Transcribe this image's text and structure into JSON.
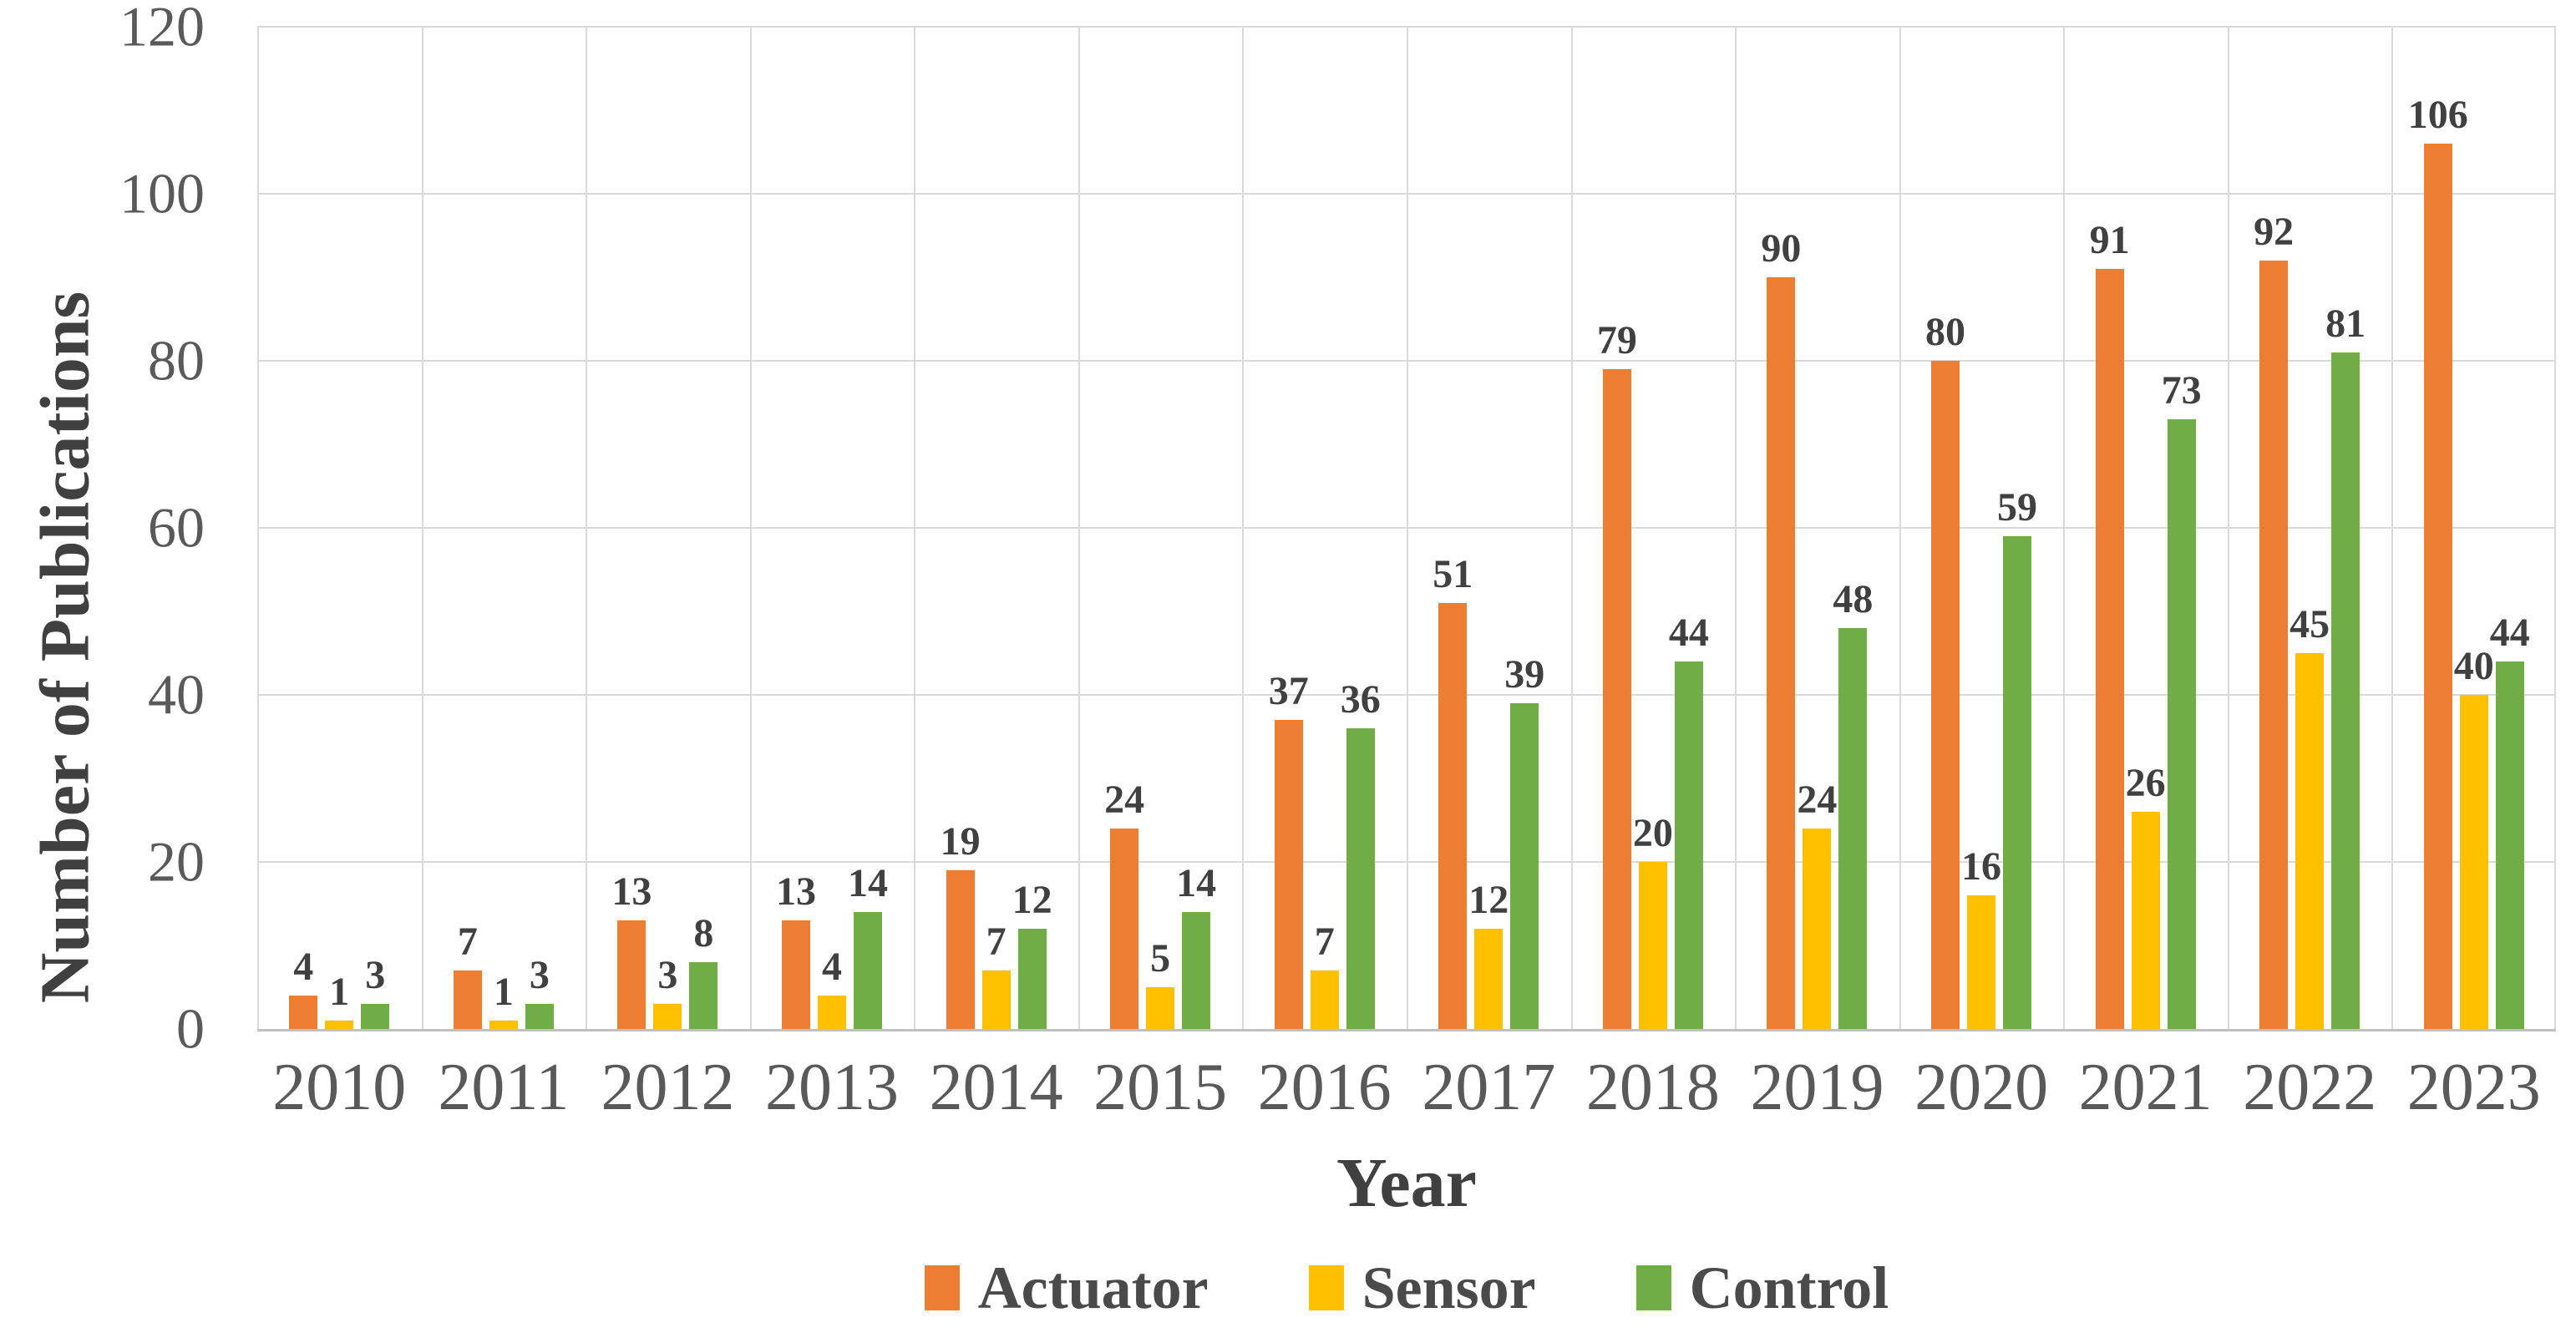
{
  "chart_data": {
    "type": "bar",
    "title": "",
    "xlabel": "Year",
    "ylabel": "Number of Publications",
    "categories": [
      "2010",
      "2011",
      "2012",
      "2013",
      "2014",
      "2015",
      "2016",
      "2017",
      "2018",
      "2019",
      "2020",
      "2021",
      "2022",
      "2023"
    ],
    "series": [
      {
        "name": "Actuator",
        "color": "#ED7D31",
        "values": [
          4,
          7,
          13,
          13,
          19,
          24,
          37,
          51,
          79,
          90,
          80,
          91,
          92,
          106
        ]
      },
      {
        "name": "Sensor",
        "color": "#FFC000",
        "values": [
          1,
          1,
          3,
          4,
          7,
          5,
          7,
          12,
          20,
          24,
          16,
          26,
          45,
          40
        ]
      },
      {
        "name": "Control",
        "color": "#70AD47",
        "values": [
          3,
          3,
          8,
          14,
          12,
          14,
          36,
          39,
          44,
          48,
          59,
          73,
          81,
          44
        ]
      }
    ],
    "ylim": [
      0,
      120
    ],
    "yticks": [
      0,
      20,
      40,
      60,
      80,
      100,
      120
    ],
    "grid": true,
    "grid_color": "#D9D9D9",
    "axis_line_color": "#BFBFBF",
    "tick_label_color": "#595959",
    "data_label_color": "#404040",
    "data_labels": true,
    "legend_position": "bottom"
  }
}
